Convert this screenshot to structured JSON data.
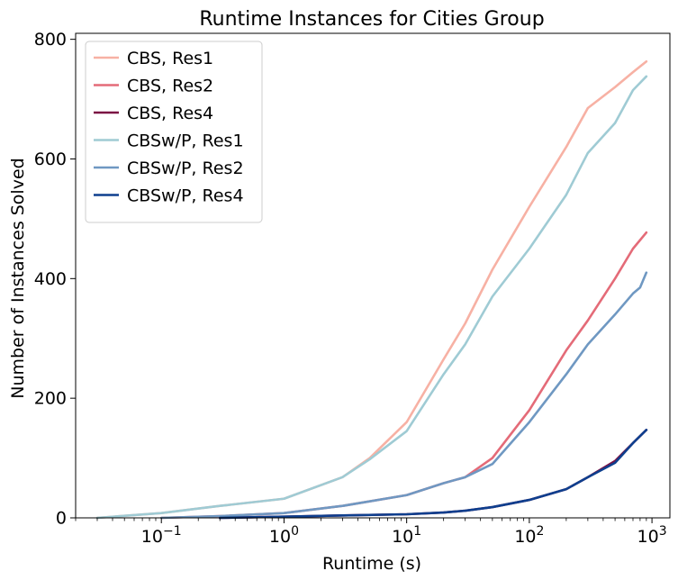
{
  "chart_data": {
    "type": "line",
    "title": "Runtime Instances for Cities Group",
    "xlabel": "Runtime (s)",
    "ylabel": "Number of Instances Solved",
    "xscale": "log",
    "xlim": [
      0.02,
      1400
    ],
    "ylim": [
      0,
      810
    ],
    "xticks": [
      {
        "value": 0.1,
        "base": "10",
        "exp": "−1"
      },
      {
        "value": 1,
        "base": "10",
        "exp": "0"
      },
      {
        "value": 10,
        "base": "10",
        "exp": "1"
      },
      {
        "value": 100,
        "base": "10",
        "exp": "2"
      },
      {
        "value": 1000,
        "base": "10",
        "exp": "3"
      }
    ],
    "yticks": [
      0,
      200,
      400,
      600,
      800
    ],
    "grid": false,
    "legend": "top-left",
    "series": [
      {
        "name": "CBS, Res1",
        "color": "#f7b1a4",
        "points": [
          [
            0.03,
            0
          ],
          [
            0.1,
            8
          ],
          [
            0.3,
            20
          ],
          [
            1,
            32
          ],
          [
            3,
            68
          ],
          [
            5,
            100
          ],
          [
            10,
            160
          ],
          [
            20,
            265
          ],
          [
            30,
            325
          ],
          [
            50,
            415
          ],
          [
            100,
            520
          ],
          [
            200,
            620
          ],
          [
            300,
            685
          ],
          [
            500,
            720
          ],
          [
            700,
            745
          ],
          [
            900,
            763
          ]
        ]
      },
      {
        "name": "CBS, Res2",
        "color": "#e46b78",
        "points": [
          [
            0.1,
            0
          ],
          [
            0.3,
            3
          ],
          [
            1,
            8
          ],
          [
            3,
            20
          ],
          [
            10,
            38
          ],
          [
            20,
            58
          ],
          [
            30,
            68
          ],
          [
            50,
            100
          ],
          [
            100,
            180
          ],
          [
            200,
            280
          ],
          [
            300,
            330
          ],
          [
            500,
            400
          ],
          [
            700,
            450
          ],
          [
            900,
            477
          ]
        ]
      },
      {
        "name": "CBS, Res4",
        "color": "#7b1043",
        "points": [
          [
            0.3,
            0
          ],
          [
            1,
            2
          ],
          [
            3,
            4
          ],
          [
            10,
            6
          ],
          [
            20,
            9
          ],
          [
            30,
            12
          ],
          [
            50,
            18
          ],
          [
            100,
            30
          ],
          [
            200,
            48
          ],
          [
            300,
            68
          ],
          [
            500,
            95
          ],
          [
            700,
            125
          ],
          [
            900,
            147
          ]
        ]
      },
      {
        "name": "CBSw/P, Res1",
        "color": "#9fcbd4",
        "points": [
          [
            0.03,
            0
          ],
          [
            0.1,
            8
          ],
          [
            0.3,
            20
          ],
          [
            1,
            32
          ],
          [
            3,
            68
          ],
          [
            5,
            98
          ],
          [
            10,
            145
          ],
          [
            20,
            240
          ],
          [
            30,
            290
          ],
          [
            50,
            370
          ],
          [
            100,
            450
          ],
          [
            200,
            540
          ],
          [
            300,
            610
          ],
          [
            500,
            660
          ],
          [
            700,
            715
          ],
          [
            900,
            738
          ]
        ]
      },
      {
        "name": "CBSw/P, Res2",
        "color": "#6f98c2",
        "points": [
          [
            0.1,
            0
          ],
          [
            0.3,
            3
          ],
          [
            1,
            8
          ],
          [
            3,
            20
          ],
          [
            10,
            38
          ],
          [
            20,
            58
          ],
          [
            30,
            68
          ],
          [
            50,
            90
          ],
          [
            100,
            160
          ],
          [
            200,
            240
          ],
          [
            300,
            290
          ],
          [
            500,
            340
          ],
          [
            700,
            375
          ],
          [
            800,
            385
          ],
          [
            900,
            410
          ]
        ]
      },
      {
        "name": "CBSw/P, Res4",
        "color": "#0e3f8e",
        "points": [
          [
            0.3,
            0
          ],
          [
            1,
            2
          ],
          [
            3,
            4
          ],
          [
            10,
            6
          ],
          [
            20,
            9
          ],
          [
            30,
            12
          ],
          [
            50,
            18
          ],
          [
            100,
            30
          ],
          [
            200,
            48
          ],
          [
            300,
            68
          ],
          [
            500,
            92
          ],
          [
            700,
            125
          ],
          [
            900,
            147
          ]
        ]
      }
    ]
  }
}
